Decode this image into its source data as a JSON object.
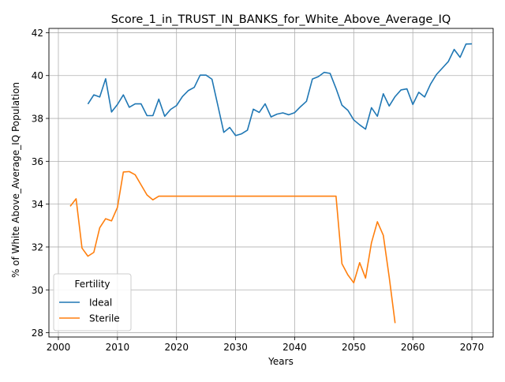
{
  "chart_data": {
    "type": "line",
    "title": "Score_1_in_TRUST_IN_BANKS_for_White_Above_Average_IQ",
    "xlabel": "Years",
    "ylabel": "% of White Above_Average_IQ Population",
    "xlim": [
      1998.4,
      2073.6
    ],
    "ylim": [
      27.8,
      42.2
    ],
    "xticks": [
      2000,
      2010,
      2020,
      2030,
      2040,
      2050,
      2060,
      2070
    ],
    "yticks": [
      28,
      30,
      32,
      34,
      36,
      38,
      40,
      42
    ],
    "grid": true,
    "legend": {
      "title": "Fertility",
      "placement": "lower-left"
    },
    "series": [
      {
        "name": "Ideal",
        "color": "#1f77b4",
        "x": [
          2005,
          2006,
          2007,
          2008,
          2009,
          2010,
          2011,
          2012,
          2013,
          2014,
          2015,
          2016,
          2017,
          2018,
          2019,
          2020,
          2021,
          2022,
          2023,
          2024,
          2025,
          2026,
          2027,
          2028,
          2029,
          2030,
          2031,
          2032,
          2033,
          2034,
          2035,
          2036,
          2037,
          2038,
          2039,
          2040,
          2041,
          2042,
          2043,
          2044,
          2045,
          2046,
          2047,
          2048,
          2049,
          2050,
          2051,
          2052,
          2053,
          2054,
          2055,
          2056,
          2057,
          2058,
          2059,
          2060,
          2061,
          2062,
          2063,
          2064,
          2065,
          2066,
          2067,
          2068,
          2069,
          2070
        ],
        "y": [
          38.67,
          39.1,
          39.0,
          39.85,
          38.3,
          38.65,
          39.1,
          38.52,
          38.68,
          38.68,
          38.13,
          38.13,
          38.9,
          38.1,
          38.42,
          38.6,
          39.02,
          39.3,
          39.45,
          40.02,
          40.02,
          39.83,
          38.6,
          37.35,
          37.58,
          37.2,
          37.28,
          37.45,
          38.43,
          38.28,
          38.68,
          38.07,
          38.2,
          38.26,
          38.17,
          38.27,
          38.55,
          38.8,
          39.84,
          39.95,
          40.15,
          40.1,
          39.4,
          38.62,
          38.38,
          37.93,
          37.7,
          37.5,
          38.5,
          38.1,
          39.15,
          38.58,
          39.02,
          39.33,
          39.38,
          38.65,
          39.22,
          39.0,
          39.6,
          40.05,
          40.35,
          40.65,
          41.22,
          40.85,
          41.47,
          41.48
        ]
      },
      {
        "name": "Sterile",
        "color": "#ff7f0e",
        "x": [
          2002,
          2003,
          2004,
          2005,
          2006,
          2007,
          2008,
          2009,
          2010,
          2011,
          2012,
          2013,
          2014,
          2015,
          2016,
          2017,
          2018,
          2019,
          2020,
          2025,
          2030,
          2035,
          2040,
          2045,
          2047,
          2048,
          2049,
          2050,
          2051,
          2052,
          2053,
          2054,
          2055,
          2056,
          2057
        ],
        "y": [
          33.9,
          34.25,
          31.95,
          31.57,
          31.75,
          32.9,
          33.32,
          33.22,
          33.85,
          35.5,
          35.52,
          35.37,
          34.9,
          34.43,
          34.2,
          34.37,
          34.37,
          34.37,
          34.37,
          34.37,
          34.37,
          34.37,
          34.37,
          34.37,
          34.37,
          31.22,
          30.7,
          30.33,
          31.27,
          30.55,
          32.2,
          33.18,
          32.55,
          30.6,
          28.45
        ]
      }
    ]
  }
}
